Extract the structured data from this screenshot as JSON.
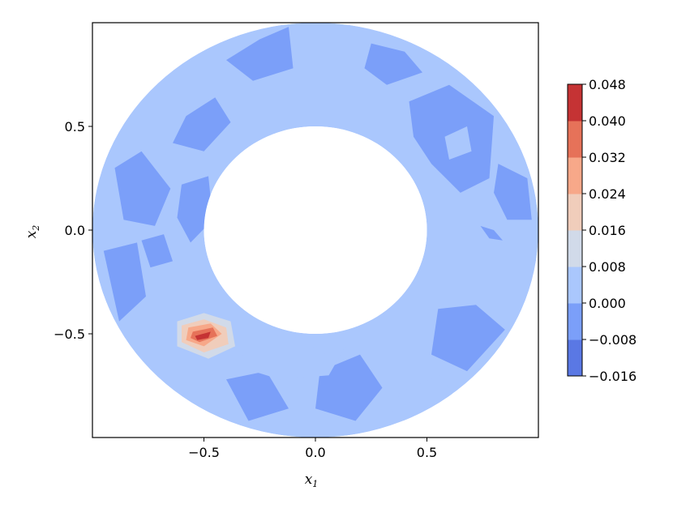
{
  "chart_data": {
    "type": "heatmap",
    "subtype": "filled-contour",
    "title": "",
    "xlabel": "x",
    "xlabel_sub": "1",
    "ylabel": "x",
    "ylabel_sub": "2",
    "xlim": [
      -1.0,
      1.0
    ],
    "ylim": [
      -1.0,
      1.0
    ],
    "xticks": [
      -0.5,
      0.0,
      0.5
    ],
    "xtick_labels": [
      "−0.5",
      "0.0",
      "0.5"
    ],
    "yticks": [
      -0.5,
      0.0,
      0.5
    ],
    "ytick_labels": [
      "−0.5",
      "0.0",
      "0.5"
    ],
    "domain": {
      "shape": "annulus",
      "center": [
        0.0,
        0.0
      ],
      "inner_radius": 0.5,
      "outer_radius": 1.0
    },
    "colormap": "coolwarm",
    "levels": [
      -0.016,
      -0.008,
      0.0,
      0.008,
      0.016,
      0.024,
      0.032,
      0.04,
      0.048
    ],
    "level_labels": [
      "−0.016",
      "−0.008",
      "0.000",
      "0.008",
      "0.016",
      "0.024",
      "0.032",
      "0.040",
      "0.048"
    ],
    "level_colors": [
      "#5a78e4",
      "#7b9ff9",
      "#aac7fd",
      "#d1dae9",
      "#f0cdbb",
      "#f7a889",
      "#e67259",
      "#c53334"
    ],
    "background_band_index": 2,
    "regions": [
      {
        "level_band": 1,
        "poly": [
          [
            -0.58,
            0.55
          ],
          [
            -0.45,
            0.64
          ],
          [
            -0.38,
            0.52
          ],
          [
            -0.5,
            0.38
          ],
          [
            -0.64,
            0.42
          ]
        ]
      },
      {
        "level_band": 1,
        "poly": [
          [
            -0.9,
            0.3
          ],
          [
            -0.78,
            0.38
          ],
          [
            -0.65,
            0.2
          ],
          [
            -0.72,
            0.02
          ],
          [
            -0.86,
            0.05
          ]
        ]
      },
      {
        "level_band": 1,
        "poly": [
          [
            -0.6,
            0.22
          ],
          [
            -0.48,
            0.26
          ],
          [
            -0.46,
            0.05
          ],
          [
            -0.56,
            -0.06
          ],
          [
            -0.62,
            0.06
          ]
        ]
      },
      {
        "level_band": 1,
        "poly": [
          [
            -0.78,
            -0.05
          ],
          [
            -0.68,
            -0.02
          ],
          [
            -0.64,
            -0.15
          ],
          [
            -0.74,
            -0.18
          ]
        ]
      },
      {
        "level_band": 1,
        "poly": [
          [
            -0.95,
            -0.1
          ],
          [
            -0.8,
            -0.06
          ],
          [
            -0.76,
            -0.32
          ],
          [
            -0.88,
            -0.44
          ]
        ]
      },
      {
        "level_band": 1,
        "poly": [
          [
            -0.4,
            0.82
          ],
          [
            -0.25,
            0.92
          ],
          [
            -0.12,
            0.98
          ],
          [
            -0.1,
            0.78
          ],
          [
            -0.28,
            0.72
          ]
        ]
      },
      {
        "level_band": 1,
        "poly": [
          [
            0.25,
            0.9
          ],
          [
            0.4,
            0.86
          ],
          [
            0.48,
            0.76
          ],
          [
            0.32,
            0.7
          ],
          [
            0.22,
            0.78
          ]
        ]
      },
      {
        "level_band": 1,
        "poly": [
          [
            0.42,
            0.62
          ],
          [
            0.6,
            0.7
          ],
          [
            0.8,
            0.55
          ],
          [
            0.78,
            0.25
          ],
          [
            0.65,
            0.18
          ],
          [
            0.52,
            0.32
          ],
          [
            0.44,
            0.45
          ]
        ]
      },
      {
        "level_band": 1,
        "poly": [
          [
            0.82,
            0.32
          ],
          [
            0.95,
            0.25
          ],
          [
            0.97,
            0.05
          ],
          [
            0.86,
            0.05
          ],
          [
            0.8,
            0.18
          ]
        ]
      },
      {
        "level_band": 1,
        "poly": [
          [
            0.74,
            0.02
          ],
          [
            0.8,
            0.0
          ],
          [
            0.84,
            -0.05
          ],
          [
            0.78,
            -0.04
          ]
        ]
      },
      {
        "level_band": 1,
        "poly": [
          [
            0.55,
            -0.38
          ],
          [
            0.72,
            -0.36
          ],
          [
            0.85,
            -0.48
          ],
          [
            0.68,
            -0.68
          ],
          [
            0.52,
            -0.6
          ]
        ]
      },
      {
        "level_band": 1,
        "poly": [
          [
            0.02,
            -0.68
          ],
          [
            0.2,
            -0.6
          ],
          [
            0.3,
            -0.76
          ],
          [
            0.18,
            -0.92
          ],
          [
            0.0,
            -0.86
          ]
        ]
      },
      {
        "level_band": 1,
        "poly": [
          [
            -0.4,
            -0.72
          ],
          [
            -0.22,
            -0.68
          ],
          [
            -0.12,
            -0.86
          ],
          [
            -0.3,
            -0.92
          ]
        ]
      },
      {
        "level_band": 2,
        "poly": [
          [
            0.58,
            0.45
          ],
          [
            0.68,
            0.5
          ],
          [
            0.7,
            0.38
          ],
          [
            0.6,
            0.34
          ]
        ]
      },
      {
        "level_band": 2,
        "poly": [
          [
            -0.32,
            -0.54
          ],
          [
            -0.12,
            -0.5
          ],
          [
            0.05,
            -0.6
          ],
          [
            0.14,
            -0.55
          ],
          [
            0.06,
            -0.7
          ],
          [
            -0.16,
            -0.72
          ],
          [
            -0.34,
            -0.66
          ]
        ]
      },
      {
        "level_band": 2,
        "poly": [
          [
            0.38,
            -0.78
          ],
          [
            0.56,
            -0.7
          ],
          [
            0.66,
            -0.86
          ],
          [
            0.48,
            -0.95
          ],
          [
            0.34,
            -0.9
          ]
        ]
      },
      {
        "level_band": 3,
        "poly": [
          [
            -0.62,
            -0.44
          ],
          [
            -0.5,
            -0.4
          ],
          [
            -0.38,
            -0.44
          ],
          [
            -0.36,
            -0.56
          ],
          [
            -0.48,
            -0.62
          ],
          [
            -0.62,
            -0.56
          ]
        ]
      },
      {
        "level_band": 4,
        "poly": [
          [
            -0.6,
            -0.46
          ],
          [
            -0.5,
            -0.43
          ],
          [
            -0.4,
            -0.47
          ],
          [
            -0.39,
            -0.55
          ],
          [
            -0.5,
            -0.59
          ],
          [
            -0.6,
            -0.54
          ]
        ]
      },
      {
        "level_band": 5,
        "poly": [
          [
            -0.57,
            -0.47
          ],
          [
            -0.47,
            -0.45
          ],
          [
            -0.42,
            -0.5
          ],
          [
            -0.5,
            -0.56
          ],
          [
            -0.58,
            -0.53
          ]
        ]
      },
      {
        "level_band": 6,
        "poly": [
          [
            -0.55,
            -0.49
          ],
          [
            -0.46,
            -0.47
          ],
          [
            -0.44,
            -0.51
          ],
          [
            -0.52,
            -0.54
          ],
          [
            -0.56,
            -0.52
          ]
        ]
      },
      {
        "level_band": 7,
        "poly": [
          [
            -0.54,
            -0.51
          ],
          [
            -0.47,
            -0.49
          ],
          [
            -0.48,
            -0.52
          ],
          [
            -0.53,
            -0.53
          ]
        ]
      }
    ]
  }
}
